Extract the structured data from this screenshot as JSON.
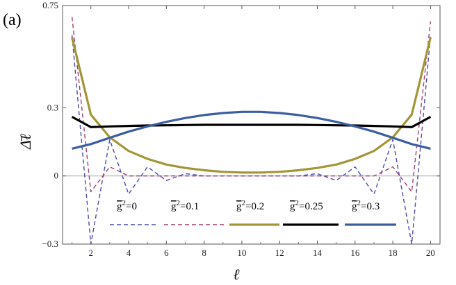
{
  "panel_label": "(a)",
  "ylabel": "Δ̄ℓ",
  "xlabel": "ℓ",
  "chart_data": {
    "type": "line",
    "xlabel": "ℓ",
    "ylabel": "Δ̄ℓ",
    "xlim": [
      1,
      20
    ],
    "ylim": [
      -0.3,
      0.75
    ],
    "xticks": [
      2,
      4,
      6,
      8,
      10,
      12,
      14,
      16,
      18,
      20
    ],
    "xtick_labels": [
      "2",
      "4",
      "6",
      "8",
      "10",
      "12",
      "14",
      "16",
      "18",
      "20"
    ],
    "yticks": [
      -0.3,
      0,
      0.3,
      0.75
    ],
    "ytick_labels": [
      "−0.3",
      "0",
      "0.3",
      "0.75"
    ],
    "zero_line": true,
    "grid": false,
    "legend_position": "bottom-center",
    "x": [
      1,
      2,
      3,
      4,
      5,
      6,
      7,
      8,
      9,
      10,
      11,
      12,
      13,
      14,
      15,
      16,
      17,
      18,
      19,
      20
    ],
    "series": [
      {
        "name": "g̅²=0",
        "legend_sup": "2",
        "legend_base": "g",
        "legend_rest": "=0",
        "color": "#4a4ab0",
        "style": "dashed",
        "values": [
          0.62,
          -0.3,
          0.16,
          -0.08,
          0.04,
          -0.02,
          0.01,
          0.0,
          0.0,
          0.0,
          0.0,
          0.0,
          0.0,
          0.01,
          -0.02,
          0.04,
          -0.08,
          0.16,
          -0.3,
          0.62
        ]
      },
      {
        "name": "g̅²=0.1",
        "legend_sup": "2",
        "legend_base": "g",
        "legend_rest": "=0.1",
        "color": "#a0406e",
        "style": "dashed",
        "values": [
          0.7,
          -0.07,
          0.04,
          0.0,
          0.0,
          0.0,
          0.0,
          0.0,
          0.0,
          0.0,
          0.0,
          0.0,
          0.0,
          0.0,
          0.0,
          0.0,
          0.0,
          0.04,
          -0.07,
          0.68
        ]
      },
      {
        "name": "g̅²=0.2",
        "legend_sup": "2",
        "legend_base": "g",
        "legend_rest": "=0.2",
        "color": "#a39536",
        "style": "solid",
        "values": [
          0.61,
          0.27,
          0.17,
          0.11,
          0.075,
          0.05,
          0.035,
          0.025,
          0.018,
          0.015,
          0.015,
          0.018,
          0.025,
          0.035,
          0.05,
          0.075,
          0.11,
          0.17,
          0.27,
          0.61
        ]
      },
      {
        "name": "g̅²=0.25",
        "legend_sup": "2",
        "legend_base": "g",
        "legend_rest": "=0.25",
        "color": "#000000",
        "style": "solid",
        "values": [
          0.26,
          0.215,
          0.218,
          0.22,
          0.222,
          0.223,
          0.224,
          0.225,
          0.225,
          0.225,
          0.225,
          0.225,
          0.225,
          0.224,
          0.223,
          0.222,
          0.22,
          0.218,
          0.215,
          0.26
        ]
      },
      {
        "name": "g̅²=0.3",
        "legend_sup": "2",
        "legend_base": "g",
        "legend_rest": "=0.3",
        "color": "#3b5ea3",
        "style": "solid",
        "values": [
          0.12,
          0.14,
          0.168,
          0.195,
          0.218,
          0.238,
          0.255,
          0.268,
          0.277,
          0.282,
          0.282,
          0.277,
          0.268,
          0.255,
          0.238,
          0.218,
          0.195,
          0.168,
          0.14,
          0.12
        ]
      }
    ]
  }
}
